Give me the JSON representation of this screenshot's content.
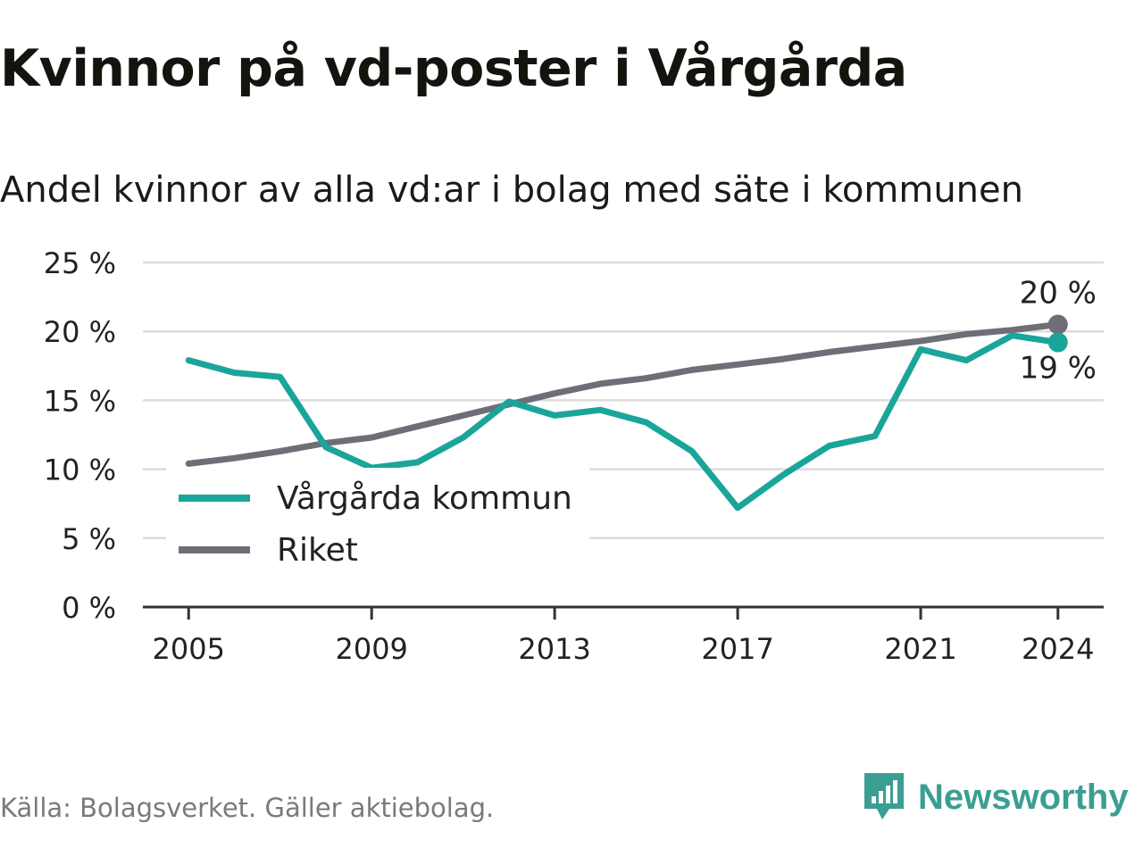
{
  "title": "Kvinnor på vd-poster i Vårgårda",
  "subtitle": "Andel kvinnor av alla vd:ar i bolag med säte i kommunen",
  "source": "Källa: Bolagsverket. Gäller aktiebolag.",
  "brand": {
    "name": "Newsworthy",
    "icon": "newsworthy-logo-icon",
    "color": "#3c9e92"
  },
  "chart_data": {
    "type": "line",
    "x": [
      2005,
      2006,
      2007,
      2008,
      2009,
      2010,
      2011,
      2012,
      2013,
      2014,
      2015,
      2016,
      2017,
      2018,
      2019,
      2020,
      2021,
      2022,
      2023,
      2024
    ],
    "x_ticks": [
      2005,
      2009,
      2013,
      2017,
      2021,
      2024
    ],
    "y_ticks": [
      0,
      5,
      10,
      15,
      20,
      25
    ],
    "y_tick_labels": [
      "0 %",
      "5 %",
      "10 %",
      "15 %",
      "20 %",
      "25 %"
    ],
    "ylim": [
      0,
      25
    ],
    "xlim": [
      2004,
      2025
    ],
    "grid": true,
    "legend_position": "middle-left",
    "series": [
      {
        "name": "Vårgårda kommun",
        "color": "#1aa59a",
        "values": [
          17.9,
          17.0,
          16.7,
          11.6,
          10.1,
          10.5,
          12.3,
          14.9,
          13.9,
          14.3,
          13.4,
          11.3,
          7.2,
          9.6,
          11.7,
          12.4,
          18.7,
          17.9,
          19.7,
          19.2
        ],
        "end_label": "19 %"
      },
      {
        "name": "Riket",
        "color": "#6f6e76",
        "values": [
          10.4,
          10.8,
          11.3,
          11.9,
          12.3,
          13.1,
          13.9,
          14.7,
          15.5,
          16.2,
          16.6,
          17.2,
          17.6,
          18.0,
          18.5,
          18.9,
          19.3,
          19.8,
          20.1,
          20.5
        ],
        "end_label": "20 %"
      }
    ]
  }
}
